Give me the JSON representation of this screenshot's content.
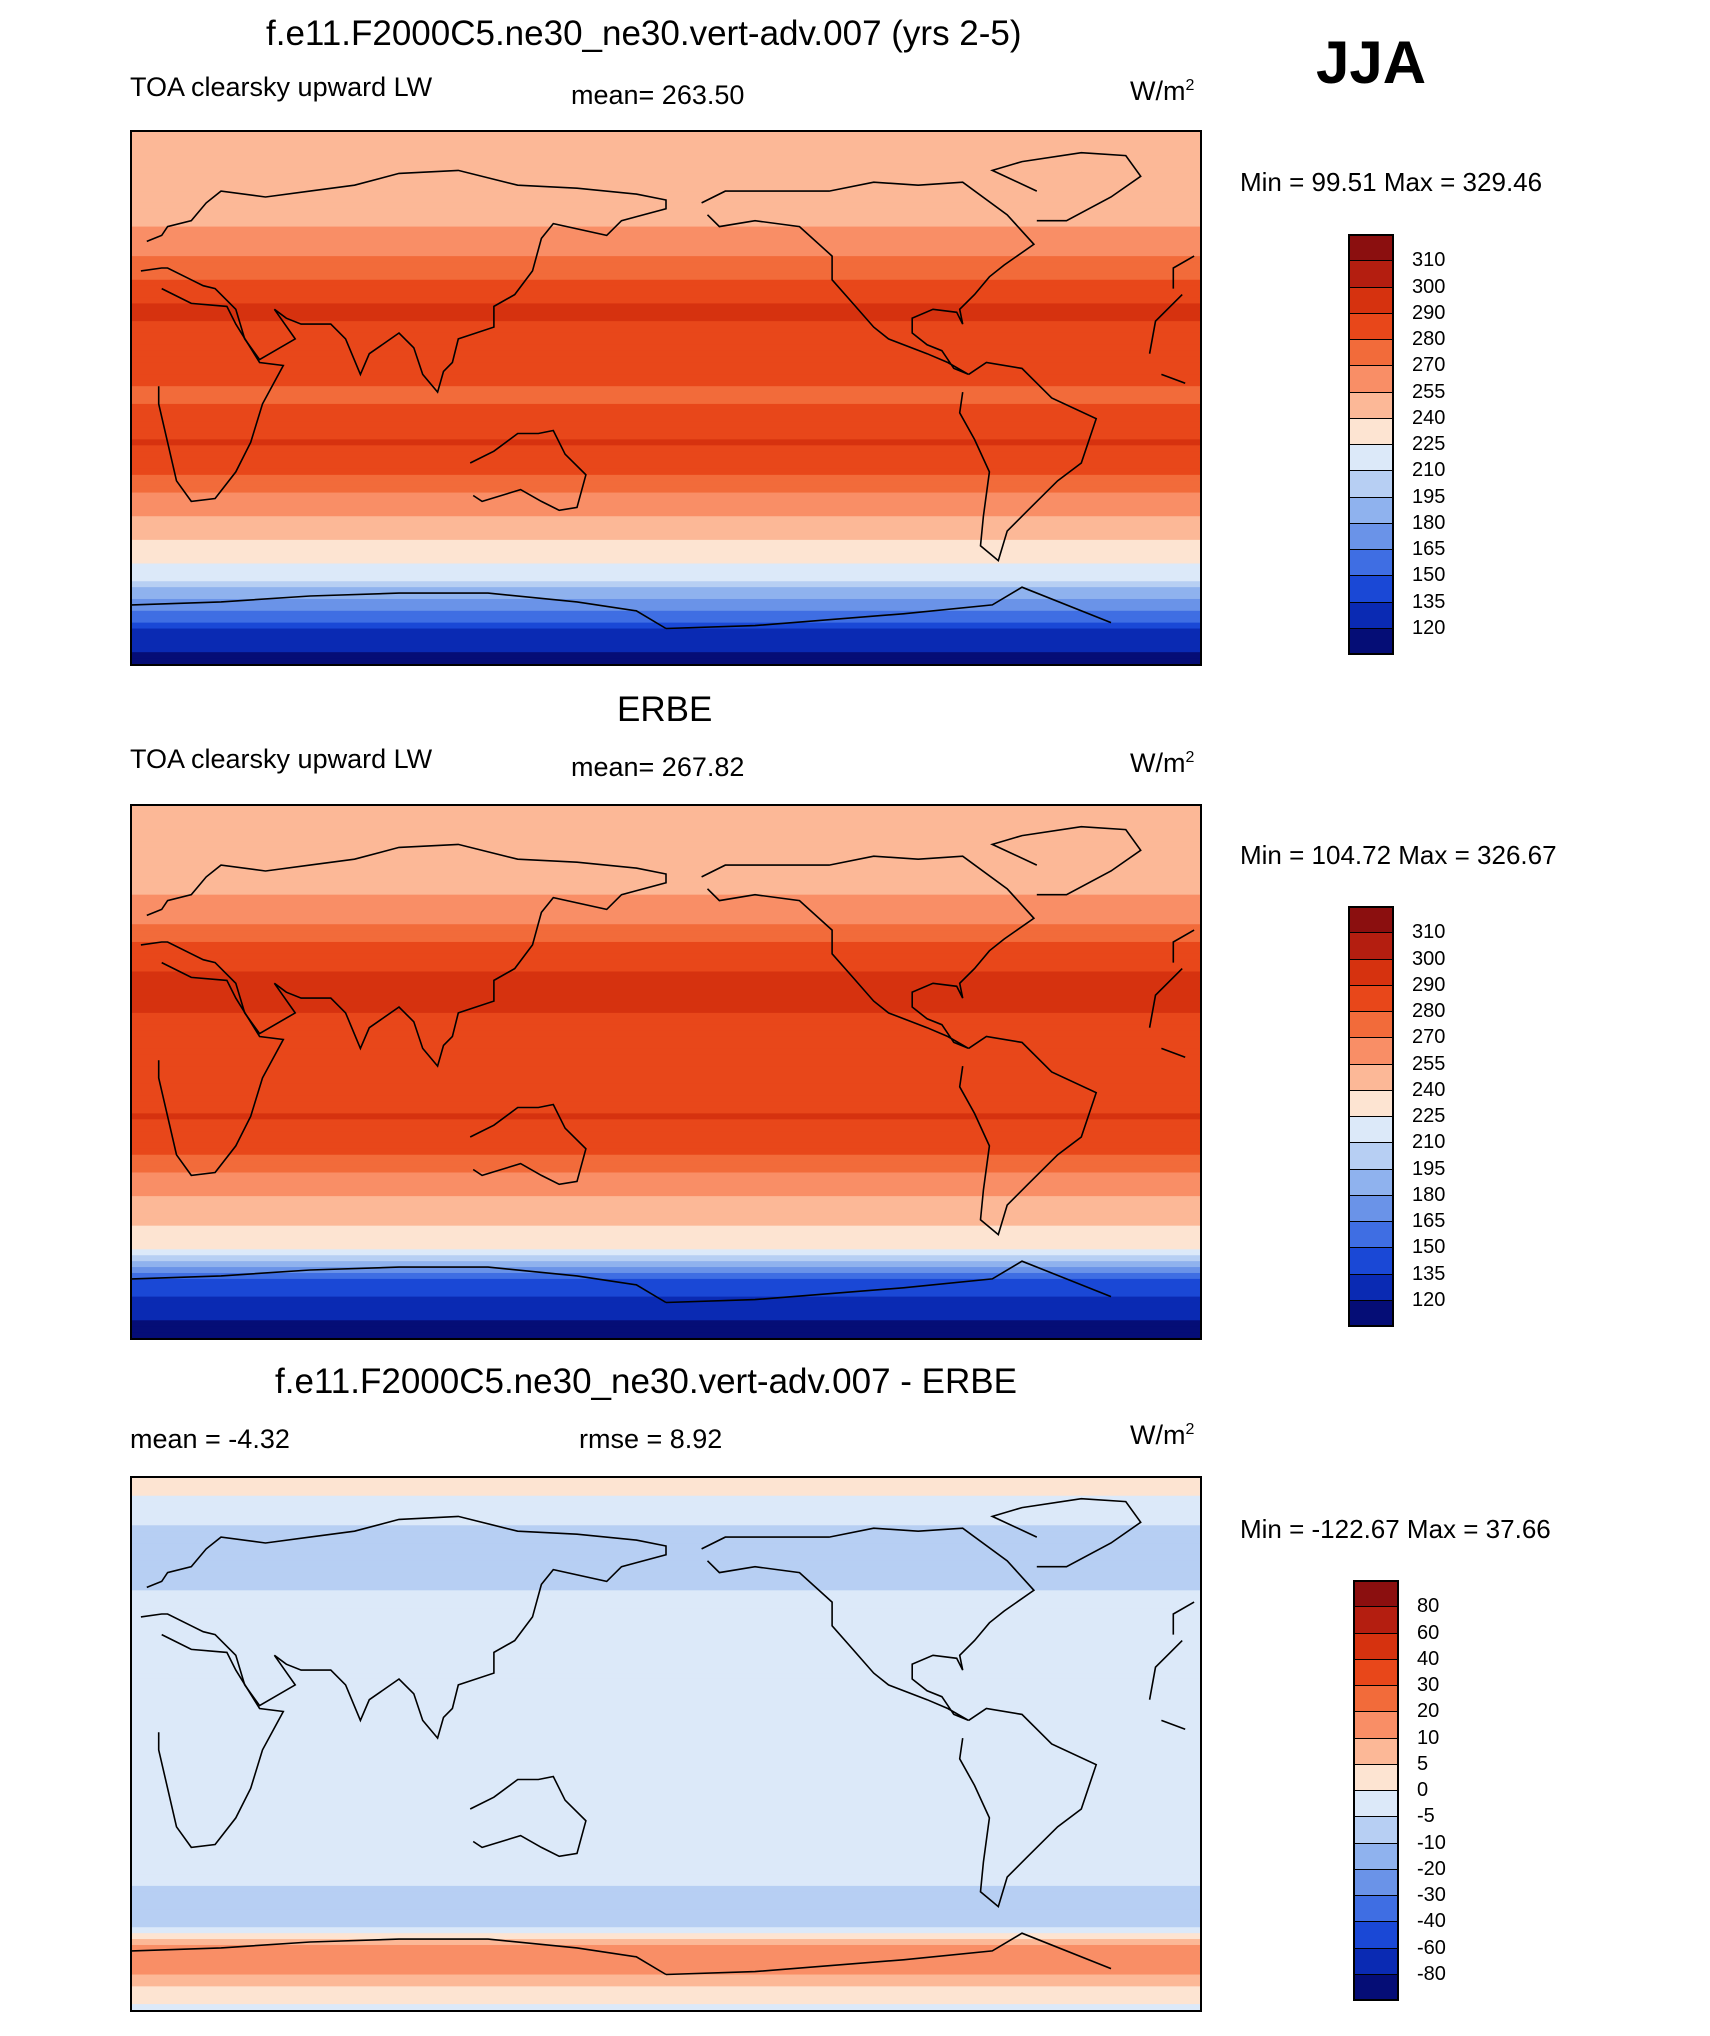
{
  "season": "JJA",
  "panels": [
    {
      "title": "f.e11.F2000C5.ne30_ne30.vert-adv.007 (yrs 2-5)",
      "left_label": "TOA clearsky upward LW",
      "mid_label": "mean= 263.50",
      "units": "W/m",
      "units_sup": "2",
      "minmax": "Min =  99.51 Max = 329.46",
      "colorbar": {
        "labels": [
          "310",
          "300",
          "290",
          "280",
          "270",
          "255",
          "240",
          "225",
          "210",
          "195",
          "180",
          "165",
          "150",
          "135",
          "120"
        ],
        "colors": [
          "#8b0f0f",
          "#b41e10",
          "#d6320f",
          "#e8471a",
          "#f26b3a",
          "#f98e66",
          "#fcb897",
          "#fde4d2",
          "#dce9f9",
          "#b7cff3",
          "#8fb2ee",
          "#6a93e8",
          "#3f6ee3",
          "#1a48d6",
          "#0a2ab3",
          "#050d76"
        ]
      }
    },
    {
      "title": "ERBE",
      "left_label": "TOA clearsky upward LW",
      "mid_label": "mean= 267.82",
      "units": "W/m",
      "units_sup": "2",
      "minmax": "Min = 104.72 Max = 326.67",
      "colorbar": {
        "labels": [
          "310",
          "300",
          "290",
          "280",
          "270",
          "255",
          "240",
          "225",
          "210",
          "195",
          "180",
          "165",
          "150",
          "135",
          "120"
        ],
        "colors": [
          "#8b0f0f",
          "#b41e10",
          "#d6320f",
          "#e8471a",
          "#f26b3a",
          "#f98e66",
          "#fcb897",
          "#fde4d2",
          "#dce9f9",
          "#b7cff3",
          "#8fb2ee",
          "#6a93e8",
          "#3f6ee3",
          "#1a48d6",
          "#0a2ab3",
          "#050d76"
        ]
      }
    },
    {
      "title": "f.e11.F2000C5.ne30_ne30.vert-adv.007 - ERBE",
      "left_label": "mean =  -4.32",
      "mid_label": "rmse =   8.92",
      "units": "W/m",
      "units_sup": "2",
      "minmax": "Min = -122.67 Max =  37.66",
      "colorbar": {
        "labels": [
          "80",
          "60",
          "40",
          "30",
          "20",
          "10",
          "5",
          "0",
          "-5",
          "-10",
          "-20",
          "-30",
          "-40",
          "-60",
          "-80"
        ],
        "colors": [
          "#8b0f0f",
          "#b41e10",
          "#d6320f",
          "#e8471a",
          "#f26b3a",
          "#f98e66",
          "#fcb897",
          "#fde4d2",
          "#dce9f9",
          "#b7cff3",
          "#8fb2ee",
          "#6a93e8",
          "#3f6ee3",
          "#1a48d6",
          "#0a2ab3",
          "#050d76"
        ]
      }
    }
  ],
  "chart_data": [
    {
      "type": "heatmap",
      "title": "f.e11.F2000C5.ne30_ne30.vert-adv.007 (yrs 2-5)",
      "subtitle": "TOA clearsky upward LW",
      "mean": 263.5,
      "units": "W/m2",
      "min": 99.51,
      "max": 329.46,
      "contour_levels": [
        120,
        135,
        150,
        165,
        180,
        195,
        210,
        225,
        240,
        255,
        270,
        280,
        290,
        300,
        310
      ],
      "zonal_profile": {
        "lat": [
          90,
          75,
          60,
          45,
          30,
          15,
          0,
          -15,
          -30,
          -45,
          -60,
          -70,
          -80,
          -90
        ],
        "value": [
          250,
          245,
          250,
          275,
          292,
          285,
          278,
          290,
          275,
          245,
          215,
          170,
          130,
          110
        ]
      }
    },
    {
      "type": "heatmap",
      "title": "ERBE",
      "subtitle": "TOA clearsky upward LW",
      "mean": 267.82,
      "units": "W/m2",
      "min": 104.72,
      "max": 326.67,
      "contour_levels": [
        120,
        135,
        150,
        165,
        180,
        195,
        210,
        225,
        240,
        255,
        270,
        280,
        290,
        300,
        310
      ],
      "zonal_profile": {
        "lat": [
          90,
          75,
          60,
          45,
          30,
          15,
          0,
          -15,
          -30,
          -45,
          -60,
          -70,
          -80,
          -90
        ],
        "value": [
          250,
          245,
          255,
          278,
          295,
          287,
          280,
          290,
          278,
          250,
          225,
          150,
          125,
          110
        ]
      }
    },
    {
      "type": "heatmap",
      "title": "f.e11.F2000C5.ne30_ne30.vert-adv.007 - ERBE",
      "mean": -4.32,
      "rmse": 8.92,
      "units": "W/m2",
      "min": -122.67,
      "max": 37.66,
      "contour_levels": [
        -80,
        -60,
        -40,
        -30,
        -20,
        -10,
        -5,
        0,
        5,
        10,
        20,
        30,
        40,
        60,
        80
      ],
      "zonal_profile": {
        "lat": [
          90,
          75,
          60,
          45,
          30,
          15,
          0,
          -15,
          -30,
          -45,
          -60,
          -70,
          -80,
          -90
        ],
        "value": [
          3,
          -5,
          -6,
          -4,
          -5,
          -4,
          -3,
          -5,
          -3,
          -4,
          -8,
          15,
          8,
          -3
        ]
      }
    }
  ]
}
